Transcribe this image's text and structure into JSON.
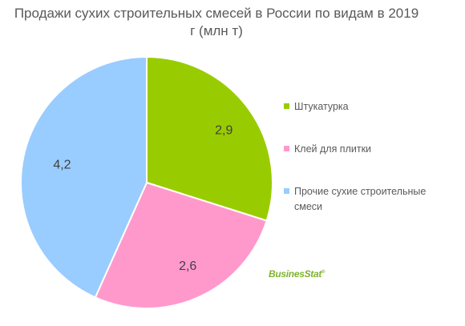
{
  "chart_data": {
    "type": "pie",
    "title": "Продажи сухих строительных смесей в России по видам в 2019 г (млн т)",
    "title_lines": [
      "Продажи сухих строительных смесей в России по видам в 2019",
      "г (млн т)"
    ],
    "categories": [
      "Штукатурка",
      "Клей для плитки",
      "Прочие сухие строительные смеси"
    ],
    "values": [
      2.9,
      2.6,
      4.2
    ],
    "data_labels": [
      "2,9",
      "2,6",
      "4,2"
    ],
    "colors": [
      "#99cc00",
      "#ff99cc",
      "#99ccff"
    ],
    "legend_position": "right",
    "start_angle": "top",
    "direction": "clockwise"
  },
  "legend": {
    "items": [
      {
        "label": "Штукатурка",
        "color": "#99cc00"
      },
      {
        "label": "Клей для плитки",
        "color": "#ff99cc"
      },
      {
        "label": "Прочие сухие строительные смеси",
        "color": "#99ccff"
      }
    ]
  },
  "logo": {
    "text": "BusinesStat",
    "reg": "®",
    "color": "#7fb42c"
  }
}
